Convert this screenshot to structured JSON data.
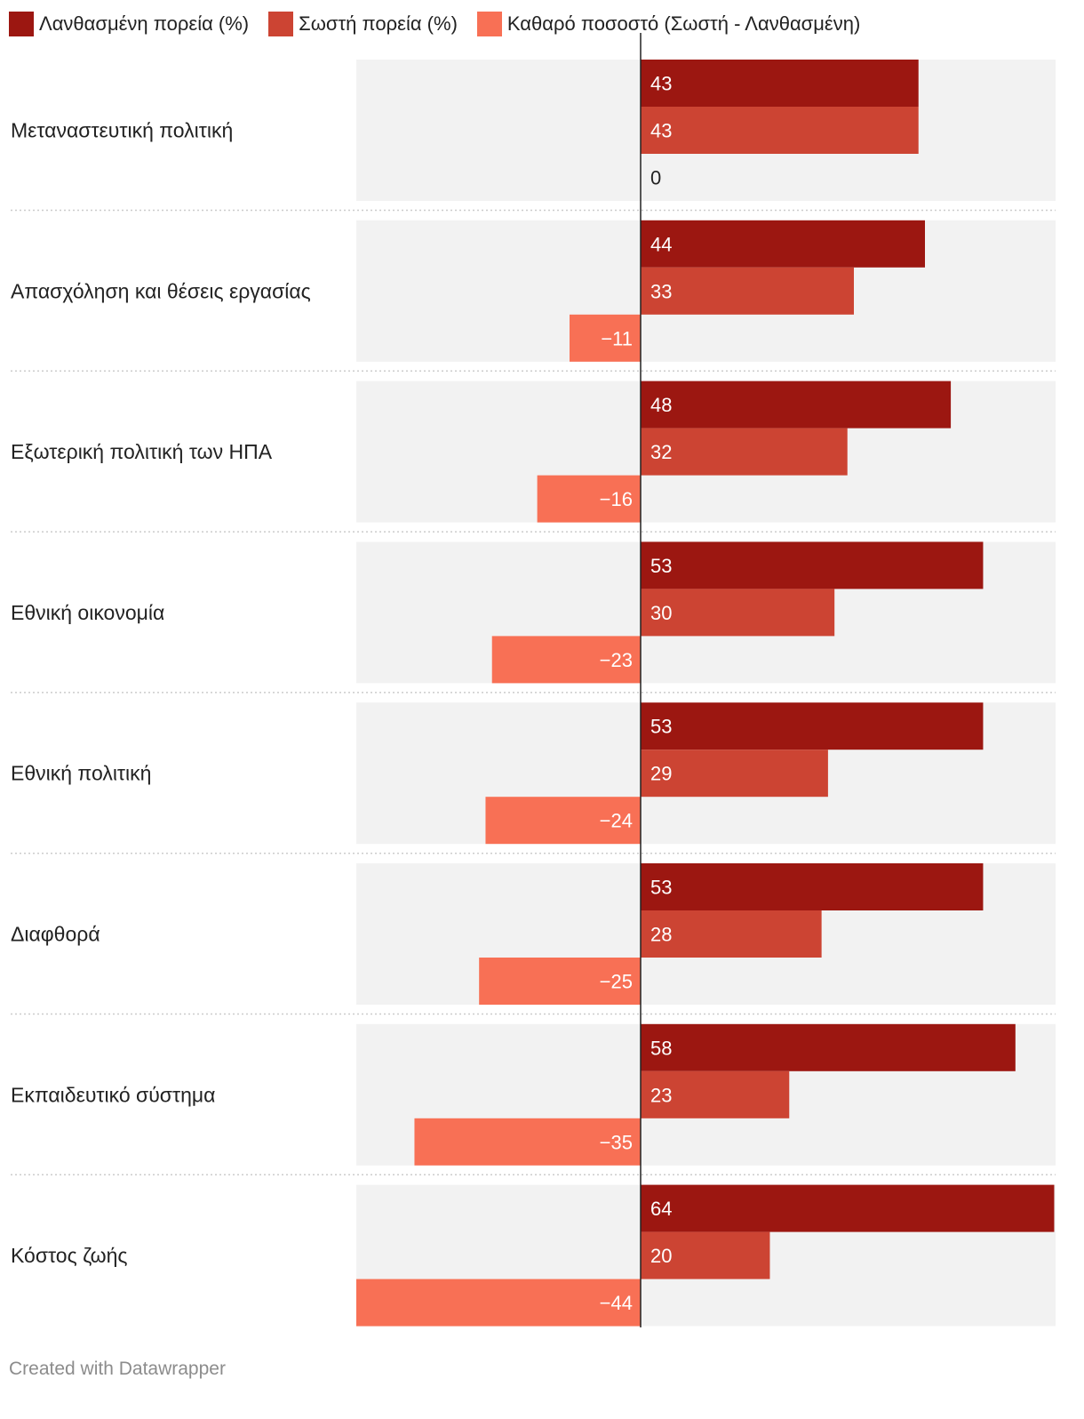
{
  "legend": [
    {
      "label": "Λανθασμένη πορεία (%)",
      "color": "#9c1711"
    },
    {
      "label": "Σωστή πορεία (%)",
      "color": "#cc4433"
    },
    {
      "label": "Καθαρό ποσοστό (Σωστή - Λανθασμένη)",
      "color": "#f87055"
    }
  ],
  "chart_data": {
    "type": "bar",
    "orientation": "horizontal",
    "categories": [
      "Μεταναστευτική πολιτική",
      "Απασχόληση και θέσεις εργασίας",
      "Εξωτερική πολιτική των ΗΠΑ",
      "Εθνική οικονομία",
      "Εθνική πολιτική",
      "Διαφθορά",
      "Εκπαιδευτικό σύστημα",
      "Κόστος ζωής"
    ],
    "series": [
      {
        "name": "Λανθασμένη πορεία (%)",
        "values": [
          43,
          44,
          48,
          53,
          53,
          53,
          58,
          64
        ]
      },
      {
        "name": "Σωστή πορεία (%)",
        "values": [
          43,
          33,
          32,
          30,
          29,
          28,
          23,
          20
        ]
      },
      {
        "name": "Καθαρό ποσοστό (Σωστή - Λανθασμένη)",
        "values": [
          0,
          -11,
          -16,
          -23,
          -24,
          -25,
          -35,
          -44
        ]
      }
    ],
    "value_labels": [
      [
        "43",
        "44",
        "48",
        "53",
        "53",
        "53",
        "58",
        "64"
      ],
      [
        "43",
        "33",
        "32",
        "30",
        "29",
        "28",
        "23",
        "20"
      ],
      [
        "0",
        "−11",
        "−16",
        "−23",
        "−24",
        "−25",
        "−35",
        "−44"
      ]
    ],
    "xlim": [
      -44,
      64
    ],
    "colors": [
      "#9c1711",
      "#cc4433",
      "#f87055"
    ],
    "background_color": "#f2f2f2",
    "grid": false,
    "legend_position": "top-left"
  },
  "footer": {
    "credit": "Created with Datawrapper"
  }
}
